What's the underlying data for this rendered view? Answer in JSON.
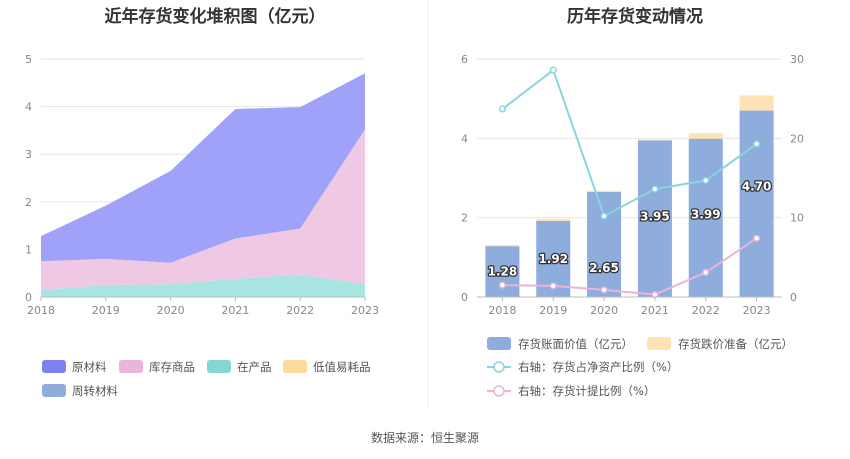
{
  "left_chart_title": "近年存货变化堆积图（亿元）",
  "right_chart_title": "历年存货变动情况",
  "source_text": "数据来源：恒生聚源",
  "chart_data": [
    {
      "type": "area",
      "title": "近年存货变化堆积图（亿元）",
      "stacked": true,
      "x": [
        "2018",
        "2019",
        "2020",
        "2021",
        "2022",
        "2023"
      ],
      "ylim": [
        0,
        5
      ],
      "yticks": [
        0,
        1,
        2,
        3,
        4,
        5
      ],
      "grid": true,
      "legend_position": "bottom",
      "series": [
        {
          "name": "周转材料",
          "color": "#8eacdc",
          "values": [
            0.0,
            0.0,
            0.0,
            0.0,
            0.0,
            0.0
          ]
        },
        {
          "name": "在产品",
          "color": "#a7e4e2",
          "values": [
            0.15,
            0.25,
            0.27,
            0.38,
            0.47,
            0.27
          ]
        },
        {
          "name": "低值易耗品",
          "color": "#fdd99b",
          "values": [
            0.0,
            0.0,
            0.0,
            0.0,
            0.0,
            0.0
          ]
        },
        {
          "name": "库存商品",
          "color": "#efc9e4",
          "values": [
            0.6,
            0.55,
            0.45,
            0.85,
            0.97,
            3.25
          ]
        },
        {
          "name": "原材料",
          "color": "#9fa2f8",
          "values": [
            0.53,
            1.12,
            1.93,
            2.72,
            2.55,
            1.18
          ]
        }
      ],
      "legend": [
        {
          "name": "原材料",
          "color": "#7f7ff5"
        },
        {
          "name": "库存商品",
          "color": "#e9b5d9"
        },
        {
          "name": "在产品",
          "color": "#86d6d6"
        },
        {
          "name": "低值易耗品",
          "color": "#fdd99b"
        },
        {
          "name": "周转材料",
          "color": "#8eacdc"
        }
      ]
    },
    {
      "type": "bar",
      "title": "历年存货变动情况",
      "x": [
        "2018",
        "2019",
        "2020",
        "2021",
        "2022",
        "2023"
      ],
      "ylim": [
        0,
        6
      ],
      "yticks": [
        0,
        2,
        4,
        6
      ],
      "y2lim": [
        0,
        30
      ],
      "y2ticks": [
        0,
        10,
        20,
        30
      ],
      "grid": true,
      "legend_position": "bottom",
      "bars": [
        {
          "name": "存货账面价值（亿元）",
          "color": "#8eacdc",
          "values": [
            1.28,
            1.92,
            2.65,
            3.95,
            3.99,
            4.7
          ],
          "labels": [
            "1.28",
            "1.92",
            "2.65",
            "3.95",
            "3.99",
            "4.70"
          ]
        },
        {
          "name": "存货跌价准备（亿元）",
          "color": "#fde3b3",
          "values": [
            0.03,
            0.05,
            0.03,
            0.02,
            0.14,
            0.38
          ]
        }
      ],
      "lines": [
        {
          "name": "右轴：存货占净资产比例（%）",
          "color": "#86d6e0",
          "axis": "right",
          "values": [
            23.7,
            28.6,
            10.2,
            13.6,
            14.7,
            19.3
          ]
        },
        {
          "name": "右轴：存货计提比例（%）",
          "color": "#e8b5d9",
          "axis": "right",
          "values": [
            1.5,
            1.4,
            0.9,
            0.3,
            3.1,
            7.4
          ]
        }
      ]
    }
  ]
}
